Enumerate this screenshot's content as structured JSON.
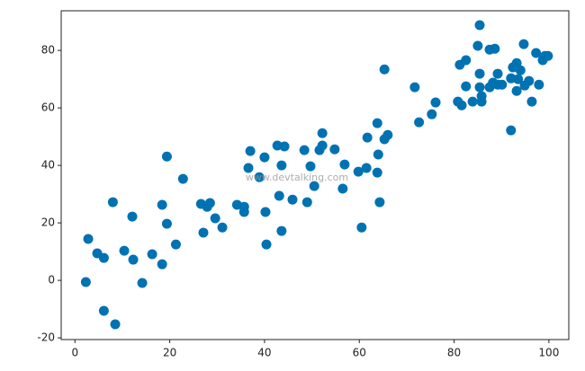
{
  "chart_data": {
    "type": "scatter",
    "annotation": "www.devtalking.com",
    "xlim": [
      -2.9,
      104.2
    ],
    "ylim": [
      -20.6,
      93.8
    ],
    "xticks": [
      0,
      20,
      40,
      60,
      80,
      100
    ],
    "yticks": [
      -20,
      0,
      20,
      40,
      60,
      80
    ],
    "grid": false,
    "series": [
      {
        "color": "#0072b2",
        "x": [
          2.3,
          2.8,
          4.7,
          6.1,
          6.1,
          8.0,
          8.5,
          10.4,
          12.1,
          12.3,
          14.2,
          16.3,
          18.4,
          18.4,
          19.4,
          19.4,
          21.3,
          22.8,
          26.6,
          27.1,
          28.5,
          27.9,
          29.6,
          31.1,
          34.2,
          35.7,
          35.7,
          36.6,
          37.0,
          38.9,
          40.0,
          40.2,
          40.4,
          42.7,
          43.1,
          43.6,
          43.6,
          44.2,
          45.9,
          48.4,
          49.0,
          49.7,
          50.5,
          51.6,
          52.2,
          52.2,
          54.8,
          56.5,
          56.9,
          59.8,
          60.5,
          61.5,
          61.7,
          63.8,
          63.8,
          64.0,
          64.3,
          65.3,
          65.3,
          66.0,
          71.7,
          72.6,
          75.3,
          76.1,
          80.8,
          81.2,
          81.6,
          82.5,
          82.5,
          83.9,
          85.0,
          85.4,
          85.4,
          85.4,
          85.8,
          85.8,
          87.5,
          88.6,
          87.5,
          88.2,
          89.2,
          89.2,
          90.1,
          92.0,
          92.0,
          92.4,
          93.2,
          93.5,
          93.2,
          94.0,
          94.7,
          94.9,
          95.8,
          96.4,
          97.3,
          97.9,
          98.7,
          99.2,
          99.8
        ],
        "values": [
          -0.6,
          14.4,
          9.4,
          7.8,
          -10.6,
          27.2,
          -15.3,
          10.3,
          22.2,
          7.2,
          -0.9,
          9.1,
          26.3,
          5.6,
          43.1,
          19.7,
          12.5,
          35.3,
          26.6,
          16.6,
          26.9,
          25.6,
          21.6,
          18.4,
          26.3,
          23.8,
          25.6,
          39.1,
          45.0,
          35.9,
          42.8,
          23.8,
          12.5,
          46.9,
          29.4,
          40.0,
          17.2,
          46.6,
          28.1,
          45.3,
          27.2,
          39.7,
          32.8,
          45.3,
          51.2,
          46.9,
          45.6,
          31.9,
          40.3,
          37.8,
          18.4,
          39.1,
          49.7,
          54.7,
          37.5,
          43.8,
          27.2,
          49.1,
          73.4,
          50.6,
          67.2,
          55.0,
          57.8,
          61.9,
          62.2,
          75.0,
          60.9,
          76.6,
          67.5,
          62.2,
          81.6,
          88.8,
          67.2,
          71.9,
          64.1,
          62.2,
          80.3,
          80.6,
          67.2,
          68.8,
          71.9,
          68.1,
          68.1,
          52.2,
          70.3,
          74.1,
          75.6,
          70.0,
          65.9,
          73.1,
          82.2,
          67.8,
          69.4,
          62.2,
          79.1,
          68.1,
          76.6,
          78.1,
          78.1
        ]
      }
    ]
  }
}
